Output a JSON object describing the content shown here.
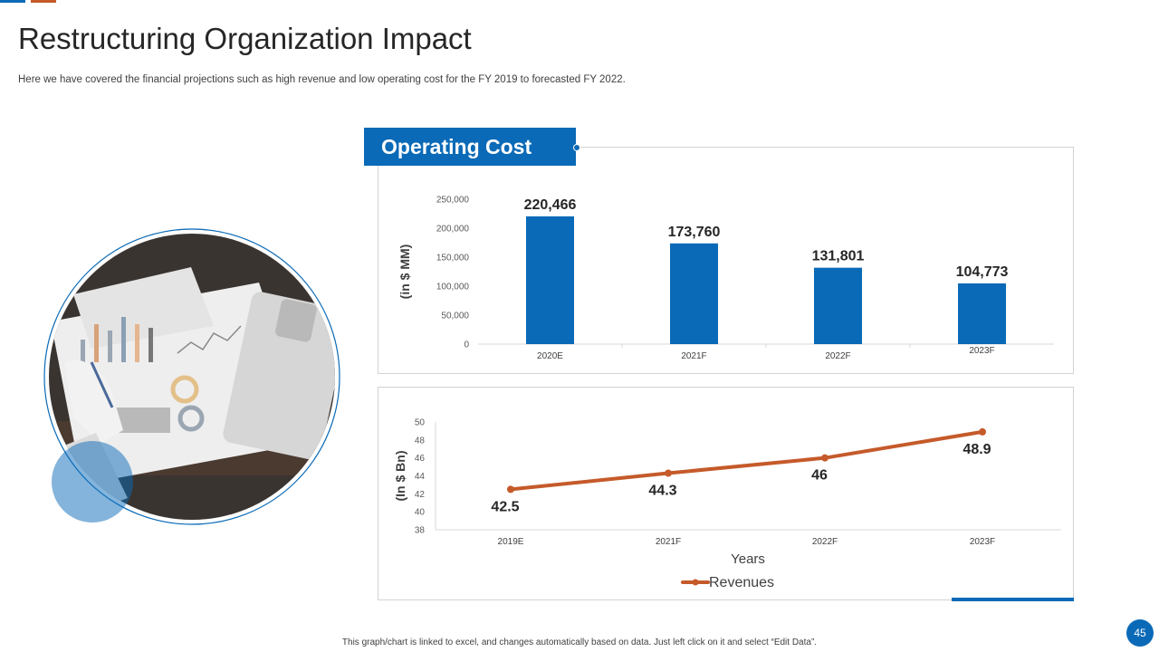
{
  "slide": {
    "title": "Restructuring Organization Impact",
    "subtitle": "Here we have covered the financial projections such as high revenue and low operating cost for the FY 2019 to forecasted FY 2022.",
    "footer_note": "This graph/chart is linked to excel, and changes automatically based on data. Just left click on it and select “Edit Data”.",
    "page_number": "45"
  },
  "colors": {
    "blue": "#0a6ab7",
    "orange": "#c55a2a",
    "gridline": "#d9d9d9",
    "text": "#262626"
  },
  "chart_data": [
    {
      "type": "bar",
      "title": "Operating Cost",
      "ylabel": "(in $ MM)",
      "xlabel": "",
      "categories": [
        "2020E",
        "2021F",
        "2022F",
        "2023F"
      ],
      "values": [
        220466,
        173760,
        131801,
        104773
      ],
      "value_labels": [
        "220,466",
        "173,760",
        "131,801",
        "104,773"
      ],
      "ylim": [
        0,
        250000
      ],
      "yticks": [
        0,
        50000,
        100000,
        150000,
        200000,
        250000
      ],
      "ytick_labels": [
        "0",
        "50,000",
        "100,000",
        "150,000",
        "200,000",
        "250,000"
      ],
      "grid": false,
      "color": "#0a6ab7"
    },
    {
      "type": "line",
      "title": "",
      "ylabel": "(In $ Bn)",
      "xlabel": "Years",
      "categories": [
        "2019E",
        "2021F",
        "2022F",
        "2023F"
      ],
      "series": [
        {
          "name": "Revenues",
          "values": [
            42.5,
            44.3,
            46,
            48.9
          ],
          "value_labels": [
            "42.5",
            "44.3",
            "46",
            "48.9"
          ],
          "color": "#c55a2a"
        }
      ],
      "ylim": [
        38,
        50
      ],
      "yticks": [
        38,
        40,
        42,
        44,
        46,
        48,
        50
      ],
      "ytick_labels": [
        "38",
        "40",
        "42",
        "44",
        "46",
        "48",
        "50"
      ],
      "grid": false,
      "legend": "bottom"
    }
  ]
}
